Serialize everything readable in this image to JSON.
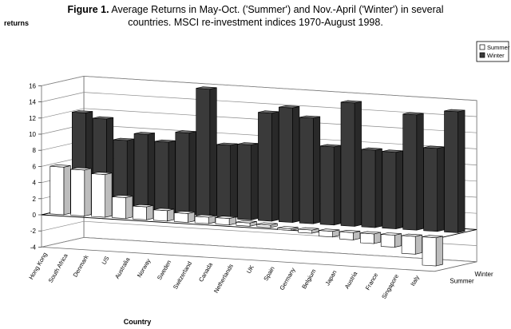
{
  "title": {
    "lead": "Figure 1.",
    "line1": "Average Returns in May-Oct. ('Summer') and Nov.-April ('Winter') in several",
    "line2": "countries. MSCI re-investment indices 1970-August 1998."
  },
  "chart_data": {
    "type": "bar",
    "xlabel": "Country",
    "ylabel": "returns",
    "depth_labels": [
      "Winter",
      "Summer"
    ],
    "ylim": [
      -4,
      16
    ],
    "yticks": [
      -4,
      -2,
      0,
      2,
      4,
      6,
      8,
      10,
      12,
      14,
      16
    ],
    "legend": "top-right",
    "categories": [
      "Hong Kong",
      "South Africa",
      "Denmark",
      "US",
      "Australia",
      "Norway",
      "Sweden",
      "Switzerland",
      "Canada",
      "Netherlands",
      "UK",
      "Spain",
      "Germany",
      "Belgium",
      "Japan",
      "Austria",
      "France",
      "Singapore",
      "Italy"
    ],
    "series": [
      {
        "name": "Summer",
        "color": "#ffffff",
        "values": [
          5.9,
          5.7,
          5.3,
          2.6,
          1.6,
          1.3,
          1.1,
          0.8,
          0.8,
          0.4,
          0.3,
          -0.2,
          -0.4,
          -0.7,
          -0.9,
          -1.2,
          -1.5,
          -2.2,
          -3.5
        ]
      },
      {
        "name": "Winter",
        "color": "#3a3a3a",
        "values": [
          12.0,
          11.4,
          8.9,
          9.8,
          9.0,
          10.3,
          15.9,
          9.1,
          9.3,
          13.4,
          14.2,
          13.1,
          9.7,
          15.3,
          9.6,
          9.5,
          14.3,
          10.3,
          15.0
        ]
      }
    ]
  }
}
